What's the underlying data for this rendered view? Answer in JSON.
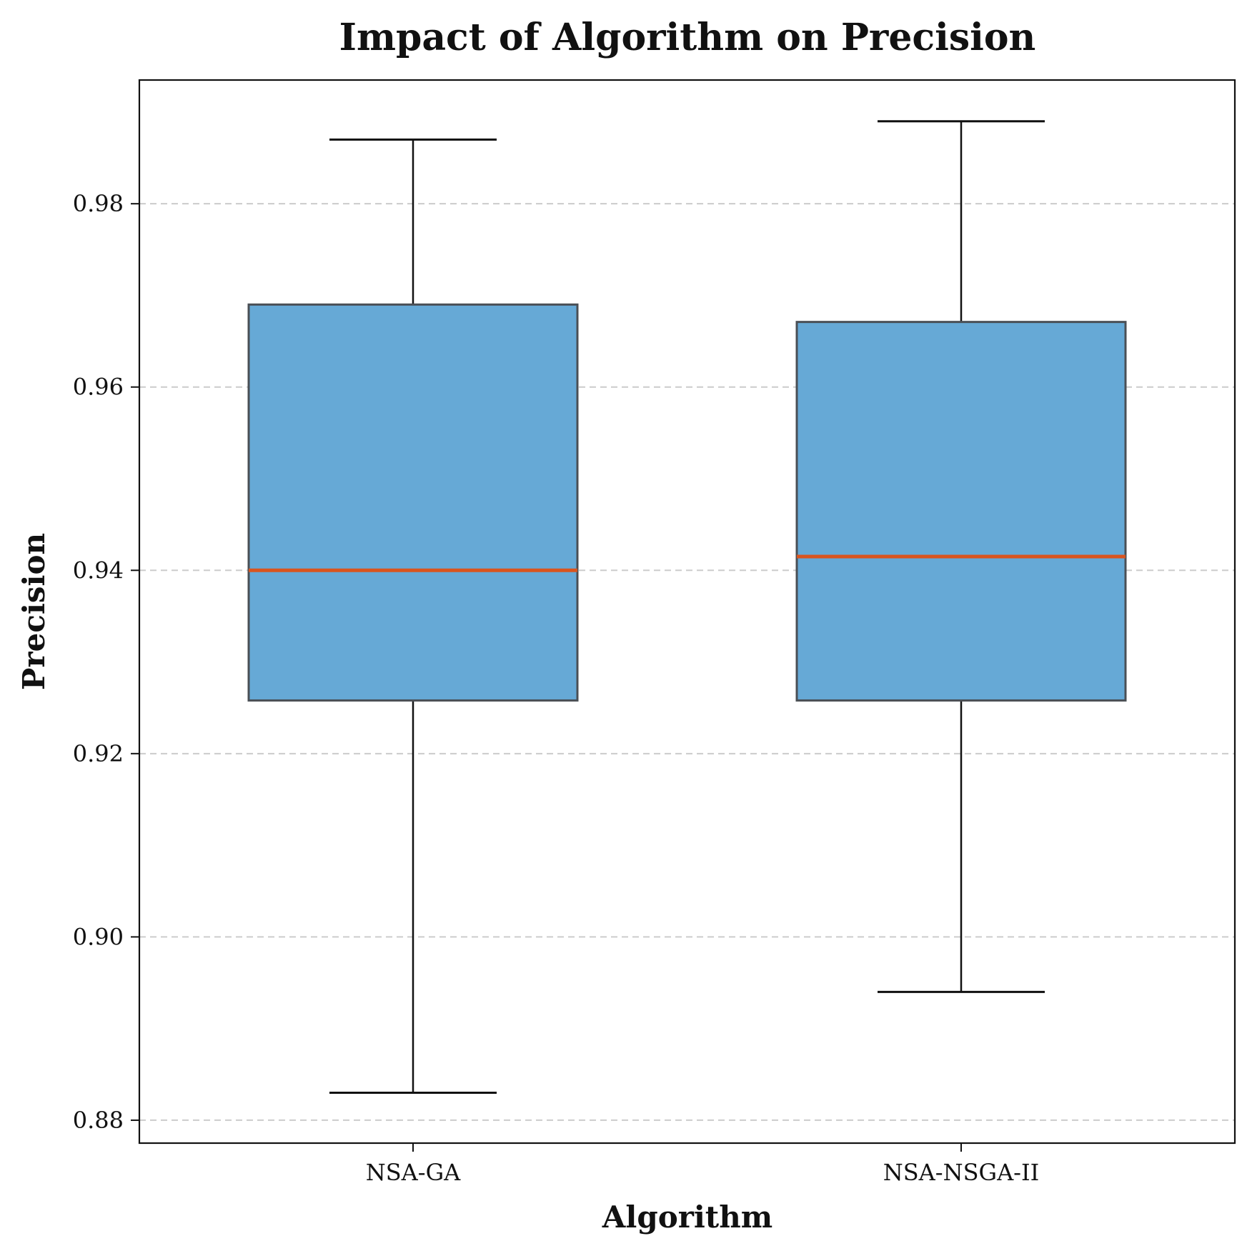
{
  "chart_data": {
    "type": "box",
    "title": "Impact of Algorithm on Precision",
    "xlabel": "Algorithm",
    "ylabel": "Precision",
    "ylim": [
      0.8775,
      0.9935
    ],
    "yticks": [
      0.88,
      0.9,
      0.92,
      0.94,
      0.96,
      0.98
    ],
    "ytick_labels": [
      "0.88",
      "0.90",
      "0.92",
      "0.94",
      "0.96",
      "0.98"
    ],
    "grid": "y-dashed",
    "categories": [
      "NSA-GA",
      "NSA-NSGA-II"
    ],
    "series": [
      {
        "category": "NSA-GA",
        "whisker_low": 0.883,
        "q1": 0.9258,
        "median": 0.94,
        "q3": 0.969,
        "whisker_high": 0.987
      },
      {
        "category": "NSA-NSGA-II",
        "whisker_low": 0.894,
        "q1": 0.9258,
        "median": 0.9415,
        "q3": 0.9671,
        "whisker_high": 0.989
      }
    ],
    "colors": {
      "box_fill": "#66a9d6",
      "box_edge": "#4a4f55",
      "median": "#d9541e",
      "whisker": "#111111",
      "grid": "#cccccc"
    }
  }
}
